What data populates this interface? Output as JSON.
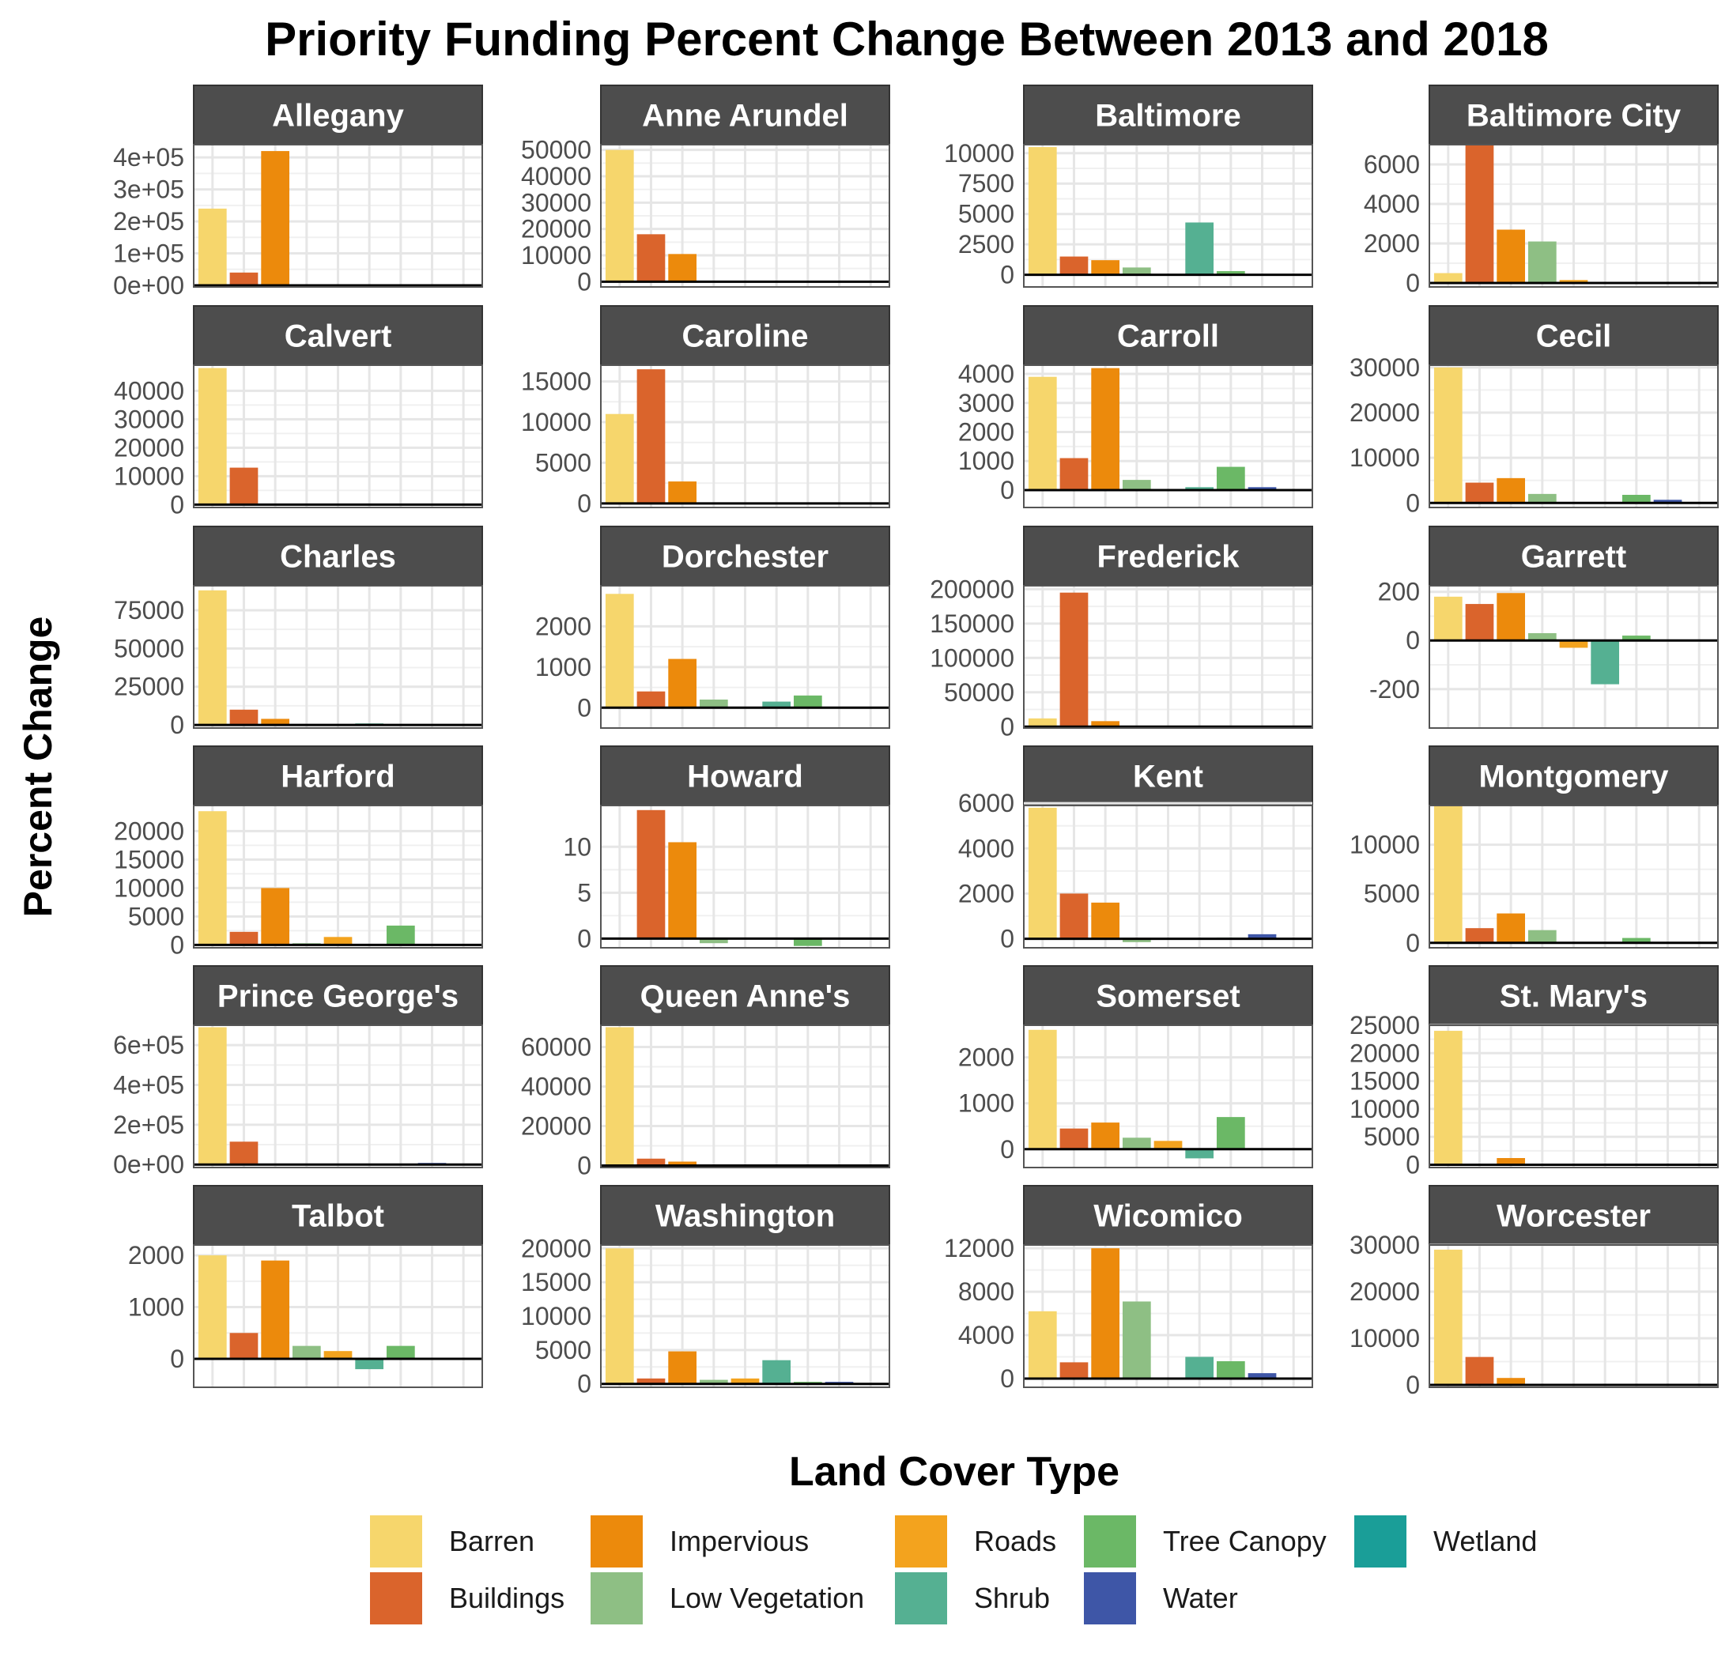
{
  "chart_data": {
    "type": "bar",
    "title": "Priority Funding Percent Change Between 2013 and 2018",
    "xlabel": "",
    "ylabel": "Percent Change",
    "legend_title": "Land Cover Type",
    "legend_position": "bottom",
    "grid": true,
    "categories": [
      "Barren",
      "Buildings",
      "Impervious",
      "Low Vegetation",
      "Roads",
      "Shrub",
      "Tree Canopy",
      "Water",
      "Wetland"
    ],
    "colors": {
      "Barren": "#F6D66C",
      "Buildings": "#DA642C",
      "Impervious": "#EC8A0C",
      "Low Vegetation": "#8EBF84",
      "Roads": "#F3A31E",
      "Shrub": "#55B092",
      "Tree Canopy": "#6BB866",
      "Water": "#3E56A7",
      "Wetland": "#1A9E98"
    },
    "legend_order": [
      "Barren",
      "Buildings",
      "Impervious",
      "Low Vegetation",
      "Roads",
      "Shrub",
      "Tree Canopy",
      "Water",
      "Wetland"
    ],
    "panels": [
      {
        "name": "Allegany",
        "ylim": [
          -5000,
          440000
        ],
        "ticks": [
          0,
          100000,
          200000,
          300000,
          400000
        ],
        "tick_labels": [
          "0e+00",
          "1e+05",
          "2e+05",
          "3e+05",
          "4e+05"
        ],
        "values": {
          "Barren": 240000,
          "Buildings": 40000,
          "Impervious": 420000
        }
      },
      {
        "name": "Anne Arundel",
        "ylim": [
          -2000,
          52000
        ],
        "ticks": [
          0,
          10000,
          20000,
          30000,
          40000,
          50000
        ],
        "tick_labels": [
          "0",
          "10000",
          "20000",
          "30000",
          "40000",
          "50000"
        ],
        "values": {
          "Barren": 50000,
          "Buildings": 18000,
          "Impervious": 10500
        }
      },
      {
        "name": "Baltimore",
        "ylim": [
          -1000,
          10700
        ],
        "ticks": [
          0,
          2500,
          5000,
          7500,
          10000
        ],
        "tick_labels": [
          "0",
          "2500",
          "5000",
          "7500",
          "10000"
        ],
        "values": {
          "Barren": 10500,
          "Buildings": 1500,
          "Impervious": 1200,
          "Low Vegetation": 600,
          "Roads": 0,
          "Shrub": 4300,
          "Tree Canopy": 300
        }
      },
      {
        "name": "Baltimore City",
        "ylim": [
          -200,
          7000
        ],
        "ticks": [
          0,
          2000,
          4000,
          6000
        ],
        "tick_labels": [
          "0",
          "2000",
          "4000",
          "6000"
        ],
        "values": {
          "Barren": 500,
          "Buildings": 7000,
          "Impervious": 2700,
          "Low Vegetation": 2100,
          "Roads": 150,
          "Tree Canopy": 50,
          "Water": 50
        }
      },
      {
        "name": "Calvert",
        "ylim": [
          -1000,
          49000
        ],
        "ticks": [
          0,
          10000,
          20000,
          30000,
          40000
        ],
        "tick_labels": [
          "0",
          "10000",
          "20000",
          "30000",
          "40000"
        ],
        "values": {
          "Barren": 48000,
          "Buildings": 13000
        }
      },
      {
        "name": "Caroline",
        "ylim": [
          -500,
          17000
        ],
        "ticks": [
          0,
          5000,
          10000,
          15000
        ],
        "tick_labels": [
          "0",
          "5000",
          "10000",
          "15000"
        ],
        "values": {
          "Barren": 11000,
          "Buildings": 16500,
          "Impervious": 2700,
          "Tree Canopy": 100
        }
      },
      {
        "name": "Carroll",
        "ylim": [
          -600,
          4300
        ],
        "ticks": [
          0,
          1000,
          2000,
          3000,
          4000
        ],
        "tick_labels": [
          "0",
          "1000",
          "2000",
          "3000",
          "4000"
        ],
        "values": {
          "Barren": 3900,
          "Buildings": 1100,
          "Impervious": 4200,
          "Low Vegetation": 350,
          "Shrub": 100,
          "Tree Canopy": 800,
          "Water": 100
        }
      },
      {
        "name": "Cecil",
        "ylim": [
          -1000,
          30500
        ],
        "ticks": [
          0,
          10000,
          20000,
          30000
        ],
        "tick_labels": [
          "0",
          "10000",
          "20000",
          "30000"
        ],
        "values": {
          "Barren": 30000,
          "Buildings": 4500,
          "Impervious": 5500,
          "Low Vegetation": 2000,
          "Tree Canopy": 1800,
          "Water": 700
        }
      },
      {
        "name": "Charles",
        "ylim": [
          -2000,
          91000
        ],
        "ticks": [
          0,
          25000,
          50000,
          75000
        ],
        "tick_labels": [
          "0",
          "25000",
          "50000",
          "75000"
        ],
        "values": {
          "Barren": 88000,
          "Buildings": 10000,
          "Impervious": 4000,
          "Shrub": 1000
        }
      },
      {
        "name": "Dorchester",
        "ylim": [
          -500,
          3000
        ],
        "ticks": [
          0,
          1000,
          2000
        ],
        "tick_labels": [
          "0",
          "1000",
          "2000"
        ],
        "values": {
          "Barren": 2800,
          "Buildings": 400,
          "Impervious": 1200,
          "Low Vegetation": 200,
          "Shrub": 150,
          "Tree Canopy": 300
        }
      },
      {
        "name": "Frederick",
        "ylim": [
          -2000,
          205000
        ],
        "ticks": [
          0,
          50000,
          100000,
          150000,
          200000
        ],
        "tick_labels": [
          "0",
          "50000",
          "100000",
          "150000",
          "200000"
        ],
        "values": {
          "Barren": 12000,
          "Buildings": 195000,
          "Impervious": 8000
        }
      },
      {
        "name": "Garrett",
        "ylim": [
          -360,
          225
        ],
        "ticks": [
          -200,
          0,
          200
        ],
        "tick_labels": [
          "-200",
          "0",
          "200"
        ],
        "values": {
          "Barren": 180,
          "Buildings": 150,
          "Impervious": 195,
          "Low Vegetation": 30,
          "Roads": -30,
          "Shrub": -180,
          "Tree Canopy": 20
        }
      },
      {
        "name": "Harford",
        "ylim": [
          -500,
          24500
        ],
        "ticks": [
          0,
          5000,
          10000,
          15000,
          20000
        ],
        "tick_labels": [
          "0",
          "5000",
          "10000",
          "15000",
          "20000"
        ],
        "values": {
          "Barren": 23500,
          "Buildings": 2300,
          "Impervious": 10000,
          "Low Vegetation": 300,
          "Roads": 1400,
          "Tree Canopy": 3400
        }
      },
      {
        "name": "Howard",
        "ylim": [
          -1,
          14.5
        ],
        "ticks": [
          0,
          5,
          10
        ],
        "tick_labels": [
          "0",
          "5",
          "10"
        ],
        "values": {
          "Buildings": 14,
          "Impervious": 10.5,
          "Low Vegetation": -0.5,
          "Tree Canopy": -0.8
        }
      },
      {
        "name": "Kent",
        "ylim": [
          -400,
          5900
        ],
        "ticks": [
          0,
          2000,
          4000,
          6000
        ],
        "tick_labels": [
          "0",
          "2000",
          "4000",
          "6000"
        ],
        "values": {
          "Barren": 5800,
          "Buildings": 2000,
          "Impervious": 1600,
          "Low Vegetation": -150,
          "Tree Canopy": 50,
          "Water": 200
        }
      },
      {
        "name": "Montgomery",
        "ylim": [
          -500,
          14000
        ],
        "ticks": [
          0,
          5000,
          10000
        ],
        "tick_labels": [
          "0",
          "5000",
          "10000"
        ],
        "values": {
          "Barren": 14000,
          "Buildings": 1500,
          "Impervious": 3000,
          "Low Vegetation": 1300,
          "Tree Canopy": 500
        }
      },
      {
        "name": "Prince George's",
        "ylim": [
          -15000,
          700000
        ],
        "ticks": [
          0,
          200000,
          400000,
          600000
        ],
        "tick_labels": [
          "0e+00",
          "2e+05",
          "4e+05",
          "6e+05"
        ],
        "values": {
          "Barren": 690000,
          "Buildings": 115000,
          "Water": 8000
        }
      },
      {
        "name": "Queen Anne's",
        "ylim": [
          -1000,
          71000
        ],
        "ticks": [
          0,
          20000,
          40000,
          60000
        ],
        "tick_labels": [
          "0",
          "20000",
          "40000",
          "60000"
        ],
        "values": {
          "Barren": 70000,
          "Buildings": 3500,
          "Impervious": 2000
        }
      },
      {
        "name": "Somerset",
        "ylim": [
          -400,
          2700
        ],
        "ticks": [
          0,
          1000,
          2000
        ],
        "tick_labels": [
          "0",
          "1000",
          "2000"
        ],
        "values": {
          "Barren": 2600,
          "Buildings": 450,
          "Impervious": 580,
          "Low Vegetation": 250,
          "Roads": 180,
          "Shrub": -200,
          "Tree Canopy": 700
        }
      },
      {
        "name": "St. Mary's",
        "ylim": [
          -500,
          25000
        ],
        "ticks": [
          0,
          5000,
          10000,
          15000,
          20000,
          25000
        ],
        "tick_labels": [
          "0",
          "5000",
          "10000",
          "15000",
          "20000",
          "25000"
        ],
        "values": {
          "Barren": 24000,
          "Impervious": 1200
        }
      },
      {
        "name": "Talbot",
        "ylim": [
          -550,
          2200
        ],
        "ticks": [
          0,
          1000,
          2000
        ],
        "tick_labels": [
          "0",
          "1000",
          "2000"
        ],
        "values": {
          "Barren": 2000,
          "Buildings": 500,
          "Impervious": 1900,
          "Low Vegetation": 250,
          "Roads": 150,
          "Shrub": -200,
          "Tree Canopy": 250
        }
      },
      {
        "name": "Washington",
        "ylim": [
          -500,
          20500
        ],
        "ticks": [
          0,
          5000,
          10000,
          15000,
          20000
        ],
        "tick_labels": [
          "0",
          "5000",
          "10000",
          "15000",
          "20000"
        ],
        "values": {
          "Barren": 20000,
          "Buildings": 800,
          "Impervious": 4800,
          "Low Vegetation": 600,
          "Roads": 800,
          "Shrub": 3500,
          "Tree Canopy": 300,
          "Water": 300
        }
      },
      {
        "name": "Wicomico",
        "ylim": [
          -800,
          12300
        ],
        "ticks": [
          0,
          4000,
          8000,
          12000
        ],
        "tick_labels": [
          "0",
          "4000",
          "8000",
          "12000"
        ],
        "values": {
          "Barren": 6200,
          "Buildings": 1500,
          "Impervious": 12000,
          "Low Vegetation": 7100,
          "Shrub": 2000,
          "Tree Canopy": 1600,
          "Water": 500
        }
      },
      {
        "name": "Worcester",
        "ylim": [
          -500,
          30000
        ],
        "ticks": [
          0,
          10000,
          20000,
          30000
        ],
        "tick_labels": [
          "0",
          "10000",
          "20000",
          "30000"
        ],
        "values": {
          "Barren": 29000,
          "Buildings": 6000,
          "Impervious": 1500,
          "Water": 100
        }
      }
    ]
  }
}
